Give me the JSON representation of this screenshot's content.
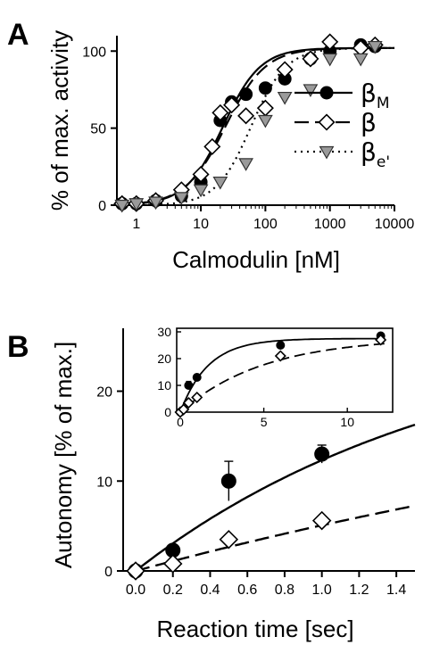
{
  "panels": {
    "A": {
      "letter": "A"
    },
    "B": {
      "letter": "B"
    }
  },
  "chart_data": [
    {
      "panel": "A",
      "type": "scatter",
      "title": "",
      "xlabel": "Calmodulin [nM]",
      "ylabel": "% of max. activity",
      "xscale": "log",
      "xlim": [
        0.5,
        10000
      ],
      "ylim": [
        0,
        110
      ],
      "xticks": [
        1,
        10,
        100,
        1000,
        10000
      ],
      "xtick_labels": [
        "1",
        "10",
        "100",
        "1000",
        "10000"
      ],
      "yticks": [
        0,
        50,
        100
      ],
      "ytick_labels": [
        "0",
        "50",
        "100"
      ],
      "legend_position": "center-right",
      "grid": false,
      "series": [
        {
          "name_main": "β",
          "name_sub": "M",
          "marker": "filled-circle",
          "line": "solid",
          "x": [
            0.6,
            1,
            2,
            5,
            10,
            20,
            30,
            50,
            100,
            200,
            500,
            1000,
            3000,
            5000
          ],
          "y": [
            1,
            1,
            3,
            6,
            15,
            55,
            67,
            72,
            76,
            82,
            95,
            100,
            104,
            103
          ]
        },
        {
          "name_main": "β",
          "name_sub": "",
          "marker": "open-diamond",
          "line": "dashed",
          "x": [
            0.6,
            1,
            2,
            5,
            10,
            15,
            20,
            30,
            50,
            100,
            200,
            500,
            1000,
            3000,
            5000
          ],
          "y": [
            1,
            1,
            3,
            10,
            20,
            38,
            60,
            65,
            58,
            63,
            88,
            95,
            106,
            102,
            104
          ]
        },
        {
          "name_main": "β",
          "name_sub": "e'",
          "marker": "gray-triangle-down",
          "line": "dotted",
          "x": [
            0.6,
            1,
            2,
            5,
            10,
            20,
            50,
            100,
            200,
            500,
            1000,
            3000,
            5000
          ],
          "y": [
            0,
            1,
            2,
            5,
            10,
            15,
            27,
            55,
            70,
            75,
            95,
            95,
            103
          ]
        }
      ],
      "fits": [
        {
          "style": "solid",
          "ec50": 22,
          "hill": 1.5,
          "max": 102
        },
        {
          "style": "dashed",
          "ec50": 24,
          "hill": 1.4,
          "max": 102
        },
        {
          "style": "dotted",
          "ec50": 60,
          "hill": 1.6,
          "max": 102
        }
      ]
    },
    {
      "panel": "B",
      "type": "scatter",
      "title": "",
      "xlabel": "Reaction time [sec]",
      "ylabel": "Autonomy [% of max.]",
      "xlim": [
        0,
        1.5
      ],
      "ylim": [
        0,
        27
      ],
      "xticks": [
        0,
        0.2,
        0.4,
        0.6,
        0.8,
        1.0,
        1.2,
        1.4
      ],
      "xtick_labels": [
        "0.0",
        "0.2",
        "0.4",
        "0.6",
        "0.8",
        "1.0",
        "1.2",
        "1.4"
      ],
      "yticks": [
        0,
        10,
        20
      ],
      "ytick_labels": [
        "0",
        "10",
        "20"
      ],
      "grid": false,
      "series": [
        {
          "marker": "filled-circle",
          "line": "solid",
          "x": [
            0,
            0.2,
            0.5,
            1.0
          ],
          "y": [
            0,
            2.3,
            10,
            13
          ],
          "yerr": [
            0,
            0,
            2.2,
            1.0
          ]
        },
        {
          "marker": "open-diamond",
          "line": "dashed",
          "x": [
            0,
            0.2,
            0.5,
            1.0
          ],
          "y": [
            0,
            0.8,
            3.5,
            5.6
          ],
          "yerr": [
            0,
            0,
            0,
            0
          ]
        }
      ],
      "fits": [
        {
          "style": "solid",
          "amp": 28,
          "k": 0.58
        },
        {
          "style": "dashed",
          "amp": 28,
          "k": 0.2
        }
      ],
      "inset": {
        "xlim": [
          0,
          12.5
        ],
        "ylim": [
          0,
          30
        ],
        "xticks": [
          0,
          5,
          10
        ],
        "xtick_labels": [
          "0",
          "5",
          "10"
        ],
        "yticks": [
          0,
          10,
          20,
          30
        ],
        "ytick_labels": [
          "0",
          "10",
          "20",
          "30"
        ],
        "series": [
          {
            "marker": "filled-circle",
            "x": [
              0,
              0.5,
              1,
              6,
              12
            ],
            "y": [
              0,
              10,
              13,
              25,
              28.5
            ],
            "yerr": [
              0,
              1.5,
              0.8,
              1.0,
              1.0
            ]
          },
          {
            "marker": "open-diamond",
            "x": [
              0,
              0.2,
              0.5,
              1,
              6,
              12
            ],
            "y": [
              0,
              1,
              3.5,
              5.5,
              21,
              27
            ],
            "yerr": [
              0,
              0,
              0,
              0,
              0,
              1.5
            ]
          }
        ],
        "fits": [
          {
            "style": "solid",
            "amp": 27.5,
            "k": 0.6
          },
          {
            "style": "dashed",
            "amp": 28,
            "k": 0.2
          }
        ]
      }
    }
  ]
}
